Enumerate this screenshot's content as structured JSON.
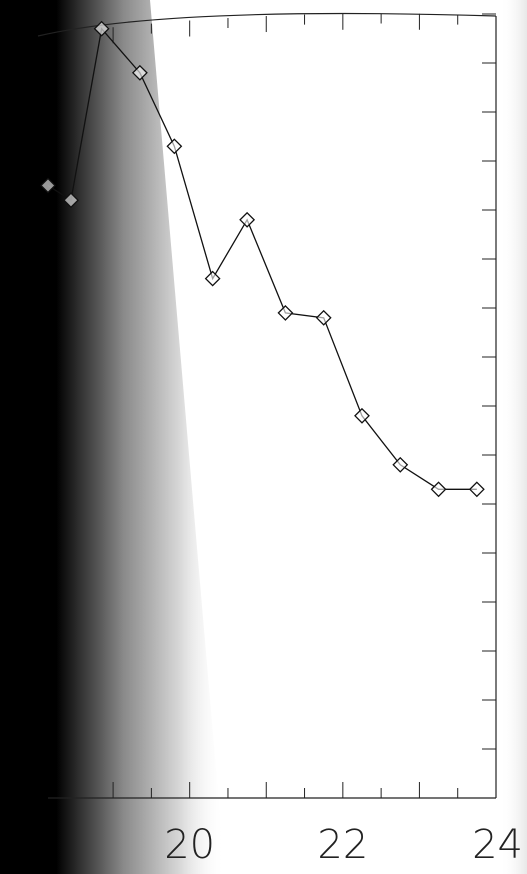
{
  "chart_data": {
    "type": "line",
    "title": "",
    "xlabel": "",
    "ylabel": "",
    "xlim": [
      18.15,
      24
    ],
    "ylim": [
      0,
      16
    ],
    "xticks": [
      {
        "value": 20,
        "label": "20"
      },
      {
        "value": 22,
        "label": "22"
      },
      {
        "value": 24,
        "label": "24"
      }
    ],
    "grid": false,
    "marker": "diamond",
    "series": [
      {
        "x": [
          18.15,
          18.45,
          18.85,
          19.35,
          19.8,
          20.3,
          20.75,
          21.25,
          21.75,
          22.25,
          22.75,
          23.25,
          23.75
        ],
        "y": [
          12.5,
          12.2,
          15.7,
          14.8,
          13.3,
          10.6,
          11.8,
          9.9,
          9.8,
          7.8,
          6.8,
          6.3,
          6.3
        ]
      }
    ]
  }
}
